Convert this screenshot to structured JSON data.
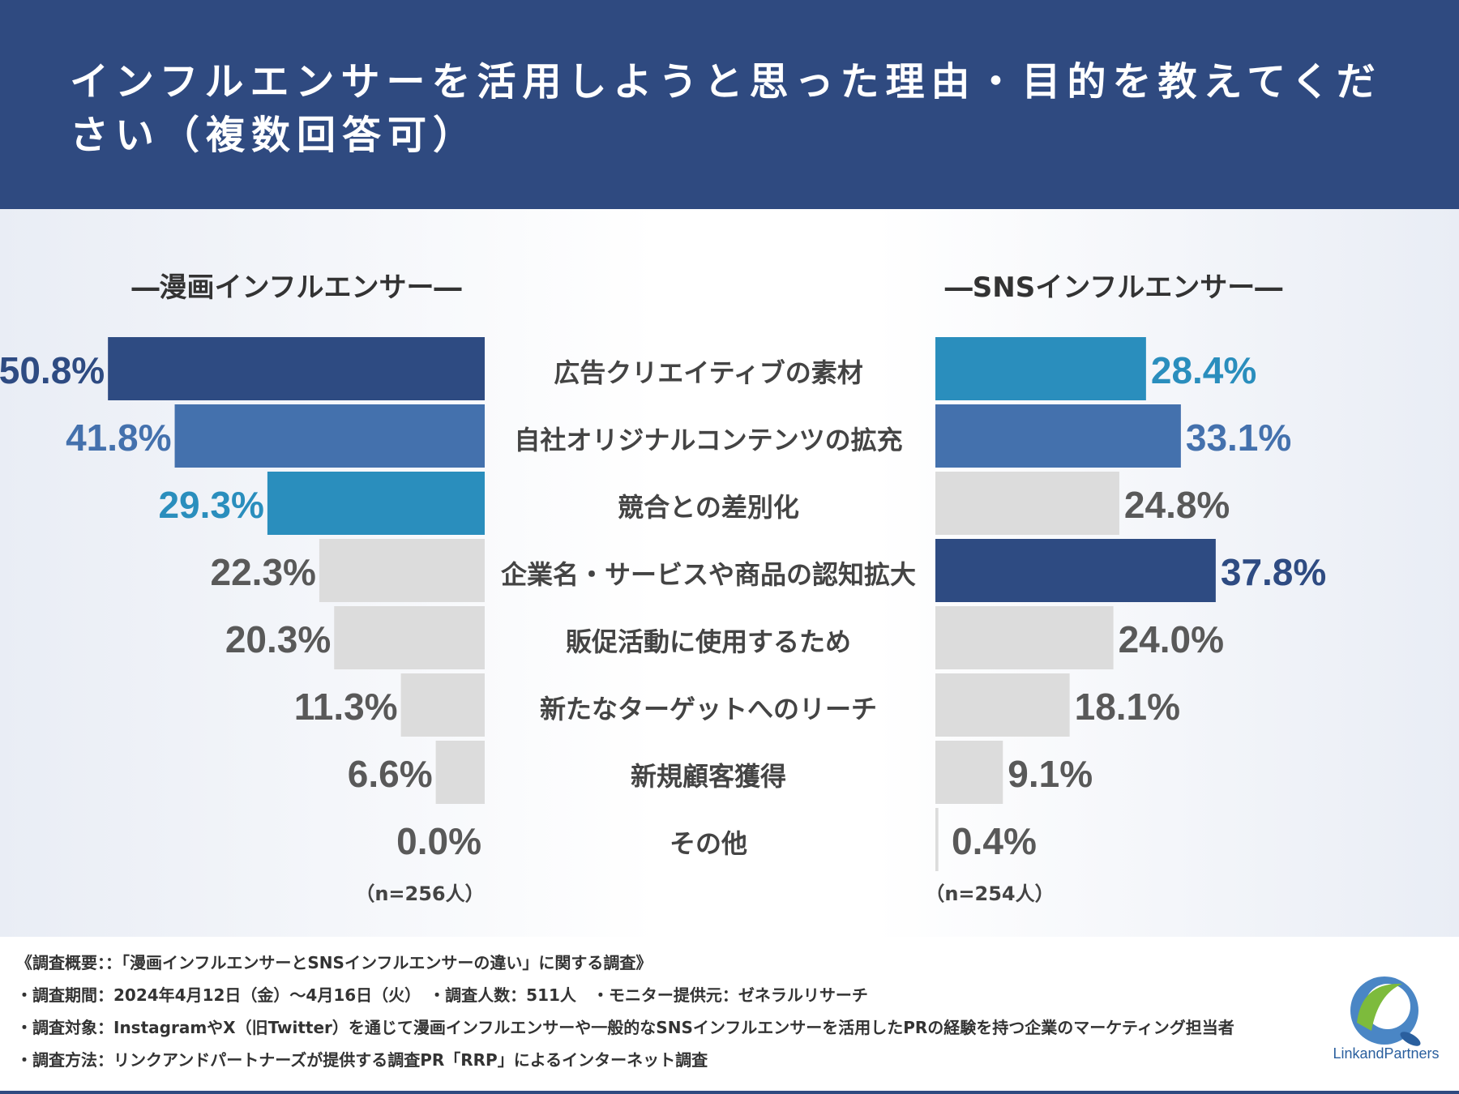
{
  "title": "インフルエンサーを活用しようと思った理由・目的を教えてください（複数回答可）",
  "colors": {
    "header_bg": "#2f4a80",
    "rank1": "#2e4b82",
    "rank2": "#4471ad",
    "rank3": "#2a8ebd",
    "other": "#dcdcdc",
    "label_other": "#595959"
  },
  "chart_data": {
    "type": "bar",
    "orientation": "horizontal-butterfly",
    "categories": [
      "広告クリエイティブの素材",
      "自社オリジナルコンテンツの拡充",
      "競合との差別化",
      "企業名・サービスや商品の認知拡大",
      "販促活動に使用するため",
      "新たなターゲットへのリーチ",
      "新規顧客獲得",
      "その他"
    ],
    "series": [
      {
        "name": "―漫画インフルエンサー―",
        "sample": "（n=256人）",
        "values": [
          50.8,
          41.8,
          29.3,
          22.3,
          20.3,
          11.3,
          6.6,
          0.0
        ],
        "labels": [
          "50.8%",
          "41.8%",
          "29.3%",
          "22.3%",
          "20.3%",
          "11.3%",
          "6.6%",
          "0.0%"
        ],
        "highlight": [
          "rank1",
          "rank2",
          "rank3",
          "other",
          "other",
          "other",
          "other",
          "other"
        ]
      },
      {
        "name": "―SNSインフルエンサー―",
        "sample": "（n=254人）",
        "values": [
          28.4,
          33.1,
          24.8,
          37.8,
          24.0,
          18.1,
          9.1,
          0.4
        ],
        "labels": [
          "28.4%",
          "33.1%",
          "24.8%",
          "37.8%",
          "24.0%",
          "18.1%",
          "9.1%",
          "0.4%"
        ],
        "highlight": [
          "rank3",
          "rank2",
          "other",
          "rank1",
          "other",
          "other",
          "other",
          "other"
        ]
      }
    ],
    "unit": "%"
  },
  "footer": {
    "line1": "《調査概要：：「漫画インフルエンサーとSNSインフルエンサーの違い」に関する調査》",
    "line2": "・調査期間：2024年4月12日（金）〜4月16日（火）　・調査人数：511人　・モニター提供元：ゼネラルリサーチ",
    "line3": "・調査対象：InstagramやX（旧Twitter）を通じて漫画インフルエンサーや一般的なSNSインフルエンサーを活用したPRの経験を持つ企業のマーケティング担当者",
    "line4": "・調査方法：リンクアンドパートナーズが提供する調査PR「RRP」によるインターネット調査"
  },
  "logo": {
    "text": "LinkandPartners",
    "icon": "link-and-partners-logo-icon"
  }
}
